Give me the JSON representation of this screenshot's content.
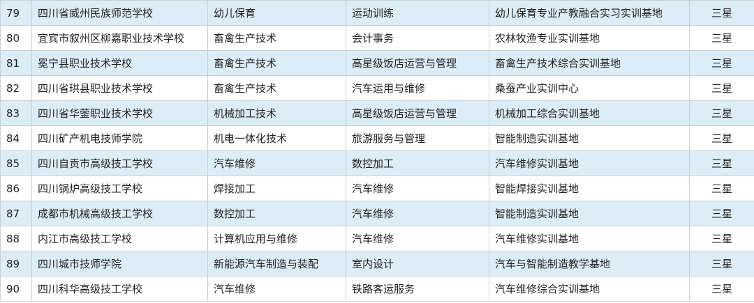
{
  "table": {
    "rows": [
      [
        "79",
        "四川省威州民族师范学校",
        "幼儿保育",
        "运动训练",
        "幼儿保育专业产教融合实习实训基地",
        "三星"
      ],
      [
        "80",
        "宜宾市叙州区柳嘉职业技术学校",
        "畜禽生产技术",
        "会计事务",
        "农林牧渔专业实训基地",
        "三星"
      ],
      [
        "81",
        "冕宁县职业技术学校",
        "畜禽生产技术",
        "高星级饭店运营与管理",
        "畜禽生产技术综合实训基地",
        "三星"
      ],
      [
        "82",
        "四川省珙县职业技术学校",
        "畜禽生产技术",
        "汽车运用与维修",
        "桑蚕产业实训中心",
        "三星"
      ],
      [
        "83",
        "四川省华蓥职业技术学校",
        "机械加工技术",
        "高星级饭店运营与管理",
        "机械加工综合实训基地",
        "三星"
      ],
      [
        "84",
        "四川矿产机电技师学院",
        "机电一体化技术",
        "旅游服务与管理",
        "智能制造实训基地",
        "三星"
      ],
      [
        "85",
        "四川自贡市高级技工学校",
        "汽车维修",
        "数控加工",
        "汽车维修实训基地",
        "三星"
      ],
      [
        "86",
        "四川锅炉高级技工学校",
        "焊接加工",
        "汽车维修",
        "智能焊接实训基地",
        "三星"
      ],
      [
        "87",
        "成都市机械高级技工学校",
        "数控加工",
        "汽车维修",
        "智能制造实训基地",
        "三星"
      ],
      [
        "88",
        "内江市高级技工学校",
        "计算机应用与维修",
        "汽车维修",
        "汽车维修实训基地",
        "三星"
      ],
      [
        "89",
        "四川城市技师学院",
        "新能源汽车制造与装配",
        "室内设计",
        "汽车与智能制造教学基地",
        "三星"
      ],
      [
        "90",
        "四川科华高级技工学校",
        "汽车维修",
        "铁路客运服务",
        "汽车维修综合实训基地",
        "三星"
      ]
    ]
  }
}
